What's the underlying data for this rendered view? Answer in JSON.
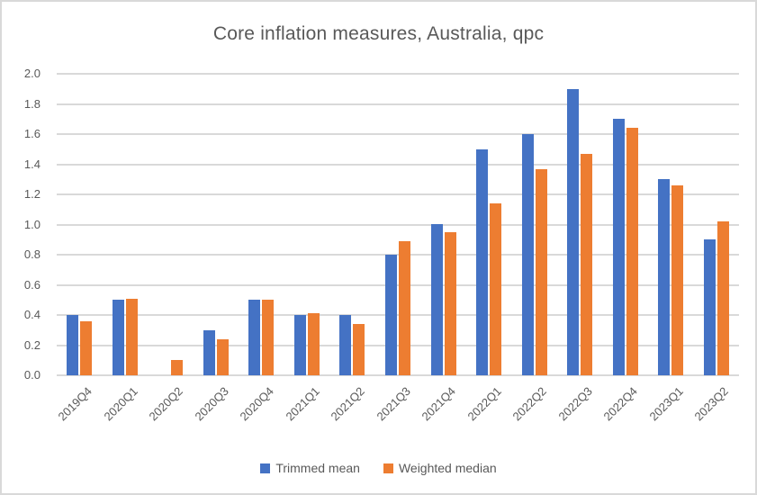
{
  "title": "Core inflation measures, Australia, qpc",
  "colors": {
    "trimmed_mean": "#4472C4",
    "weighted_median": "#ED7D31",
    "gridline": "#D9D9D9",
    "text": "#595959",
    "frame_border": "#D9D9D9"
  },
  "chart_data": {
    "type": "bar",
    "title": "Core inflation measures, Australia, qpc",
    "categories": [
      "2019Q4",
      "2020Q1",
      "2020Q2",
      "2020Q3",
      "2020Q4",
      "2021Q1",
      "2021Q2",
      "2021Q3",
      "2021Q4",
      "2022Q1",
      "2022Q2",
      "2022Q3",
      "2022Q4",
      "2023Q1",
      "2023Q2"
    ],
    "series": [
      {
        "name": "Trimmed mean",
        "color": "#4472C4",
        "values": [
          0.4,
          0.5,
          0.0,
          0.3,
          0.5,
          0.4,
          0.4,
          0.8,
          1.0,
          1.5,
          1.6,
          1.9,
          1.7,
          1.3,
          0.9
        ]
      },
      {
        "name": "Weighted median",
        "color": "#ED7D31",
        "values": [
          0.36,
          0.51,
          0.1,
          0.24,
          0.5,
          0.41,
          0.34,
          0.89,
          0.95,
          1.14,
          1.37,
          1.47,
          1.64,
          1.26,
          1.02
        ]
      }
    ],
    "xlabel": "",
    "ylabel": "",
    "ylim": [
      0.0,
      2.0
    ],
    "ytick_step": 0.2,
    "ytick_labels": [
      "0.0",
      "0.2",
      "0.4",
      "0.6",
      "0.8",
      "1.0",
      "1.2",
      "1.4",
      "1.6",
      "1.8",
      "2.0"
    ],
    "grid": true,
    "legend_position": "bottom",
    "legend_labels": [
      "Trimmed mean",
      "Weighted median"
    ]
  }
}
